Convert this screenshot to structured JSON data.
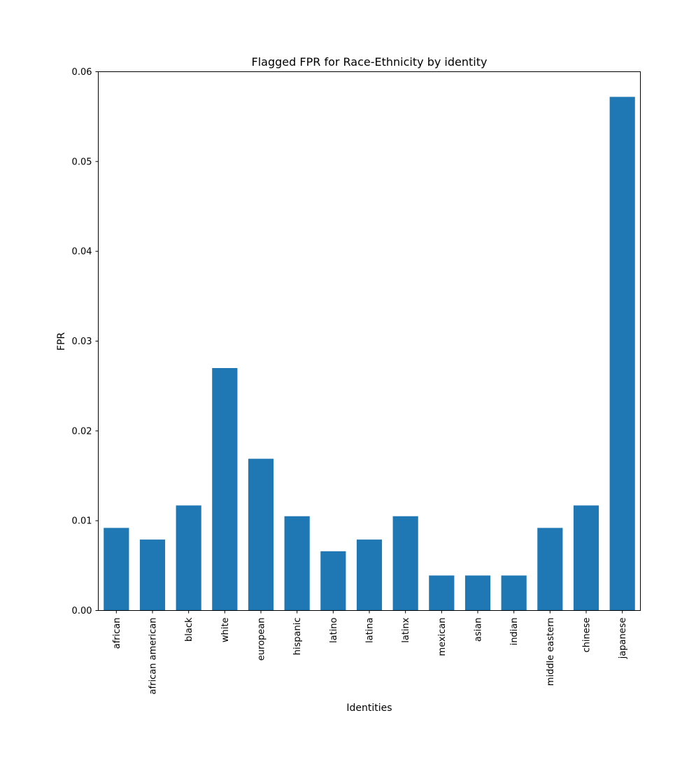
{
  "chart_data": {
    "type": "bar",
    "title": "Flagged FPR for Race-Ethnicity by identity",
    "xlabel": "Identities",
    "ylabel": "FPR",
    "categories": [
      "african",
      "african american",
      "black",
      "white",
      "european",
      "hispanic",
      "latino",
      "latina",
      "latinx",
      "mexican",
      "asian",
      "indian",
      "middle eastern",
      "chinese",
      "japanese"
    ],
    "values": [
      0.0092,
      0.0079,
      0.0117,
      0.027,
      0.0169,
      0.0105,
      0.0066,
      0.0079,
      0.0105,
      0.0039,
      0.0039,
      0.0039,
      0.0092,
      0.0117,
      0.0572
    ],
    "ylim": [
      0,
      0.06
    ],
    "yticks": [
      0.0,
      0.01,
      0.02,
      0.03,
      0.04,
      0.05,
      0.06
    ],
    "ytick_labels": [
      "0.00",
      "0.01",
      "0.02",
      "0.03",
      "0.04",
      "0.05",
      "0.06"
    ],
    "bar_color": "#1f77b4",
    "grid": false,
    "legend": "none"
  }
}
